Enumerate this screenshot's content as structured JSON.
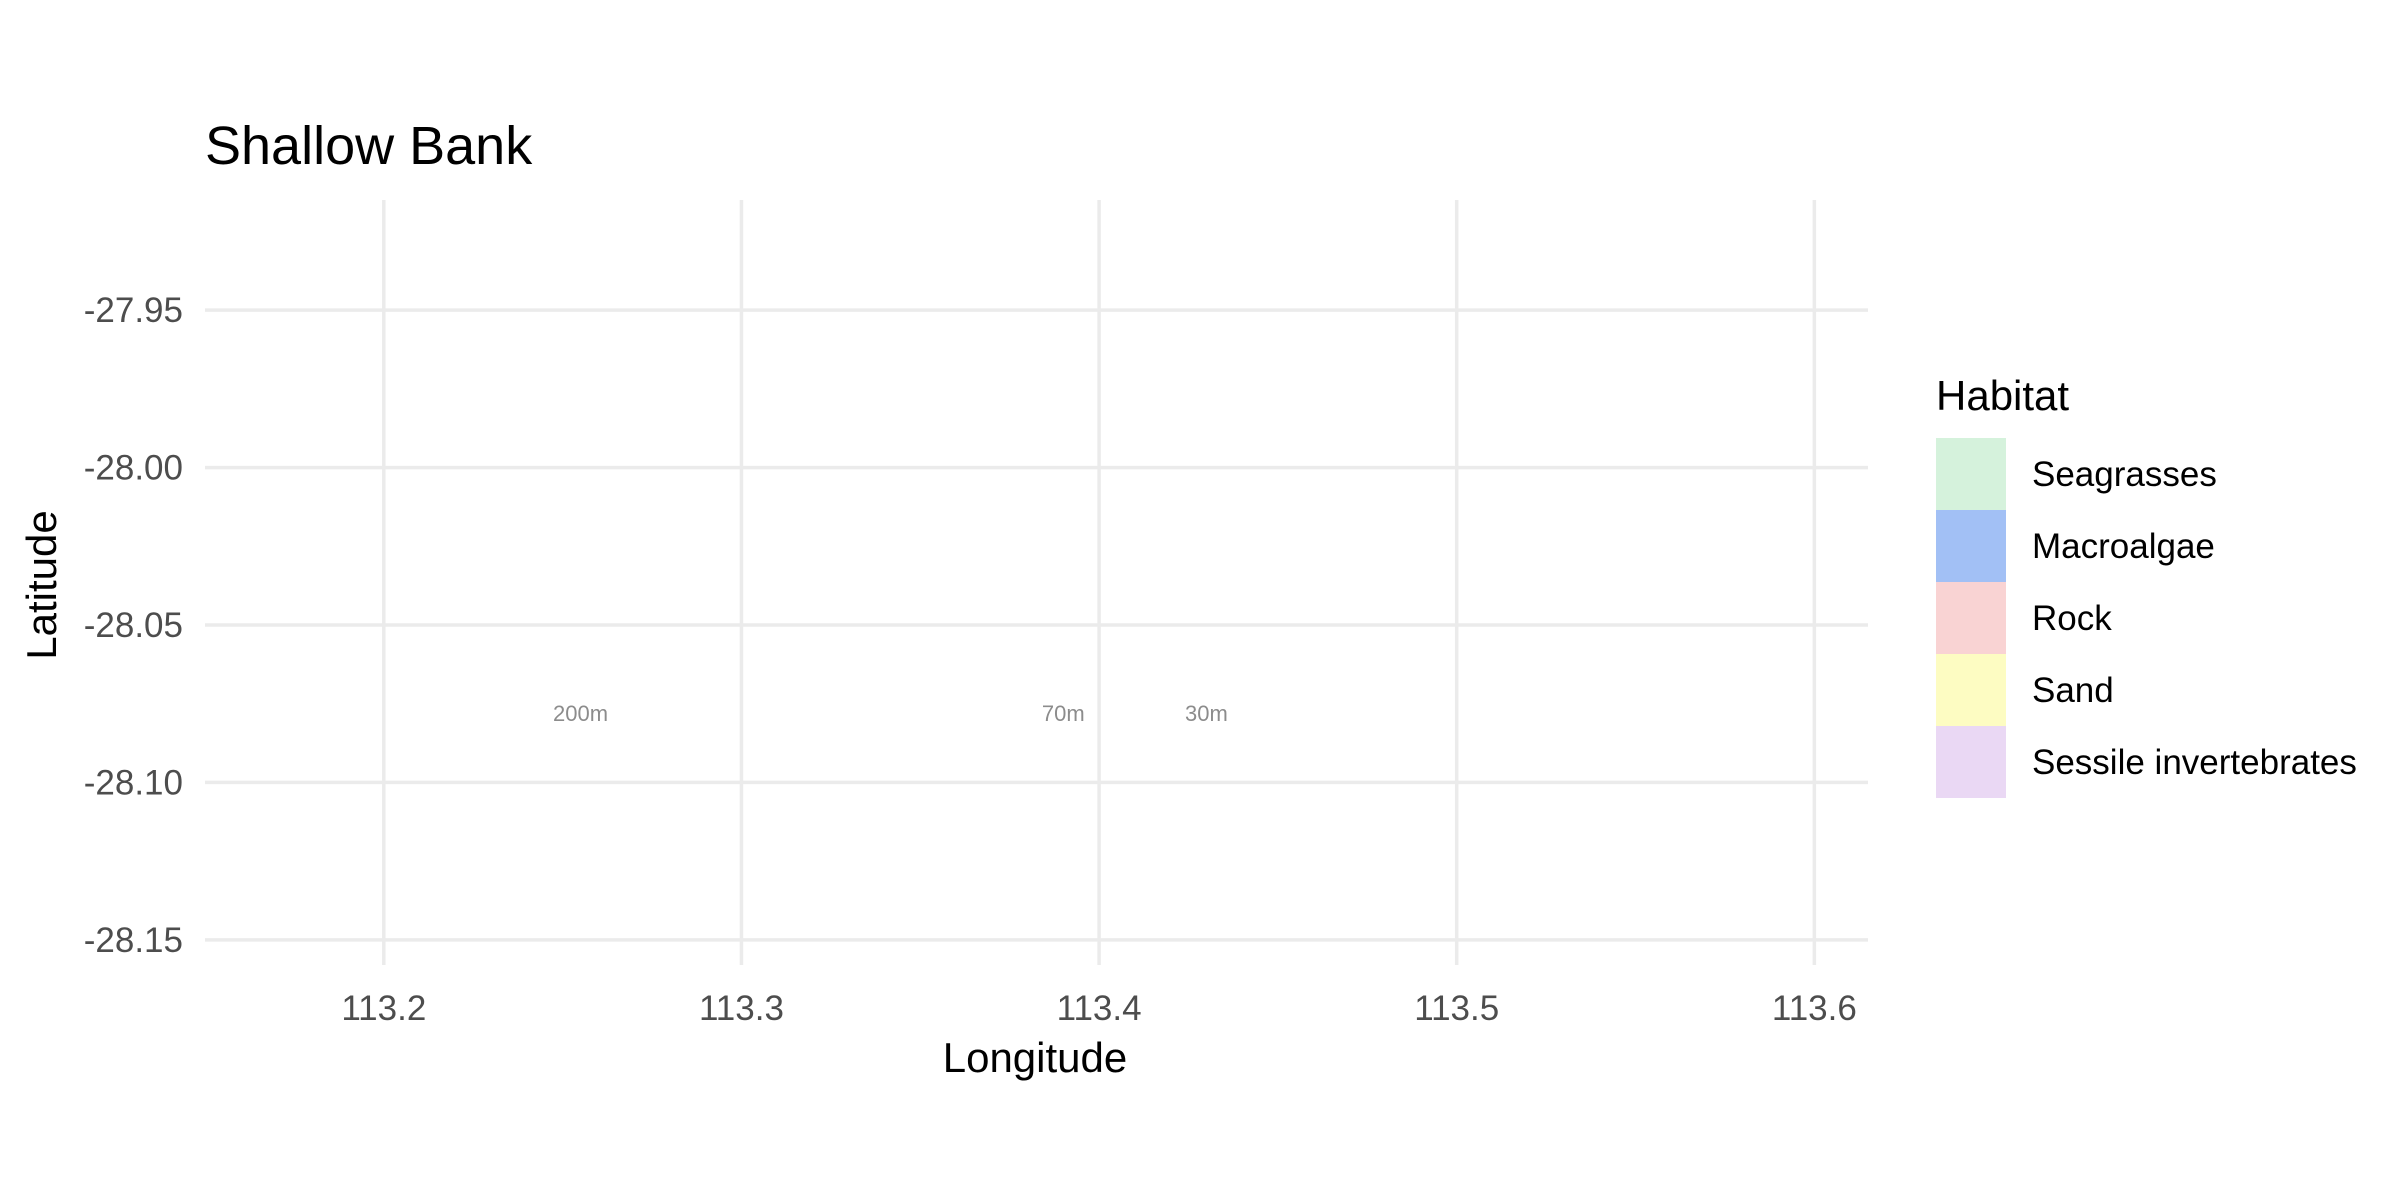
{
  "map": {
    "title": "Shallow Bank",
    "xlabel": "Longitude",
    "ylabel": "Latitude",
    "xlim": [
      113.15,
      113.615
    ],
    "ylim": [
      -28.158,
      -27.915
    ],
    "x_ticks": [
      113.2,
      113.3,
      113.4,
      113.5,
      113.6
    ],
    "x_tick_labels": [
      "113.2",
      "113.3",
      "113.4",
      "113.5",
      "113.6"
    ],
    "y_ticks": [
      -27.95,
      -28.0,
      -28.05,
      -28.1,
      -28.15
    ],
    "y_tick_labels": [
      "-27.95",
      "-28.00",
      "-28.05",
      "-28.10",
      "-28.15"
    ],
    "grid": true,
    "contour_labels": [
      {
        "text": "200m",
        "lon": 113.255,
        "lat": -28.078
      },
      {
        "text": "70m",
        "lon": 113.39,
        "lat": -28.078
      },
      {
        "text": "30m",
        "lon": 113.43,
        "lat": -28.078
      }
    ],
    "legend": {
      "title": "Habitat",
      "position": "right",
      "items": [
        {
          "label": "Seagrasses",
          "color": "#d5f2dc"
        },
        {
          "label": "Macroalgae",
          "color": "#a2c0f5"
        },
        {
          "label": "Rock",
          "color": "#f9d3d3"
        },
        {
          "label": "Sand",
          "color": "#fdfcc2"
        },
        {
          "label": "Sessile invertebrates",
          "color": "#ead8f4"
        }
      ]
    }
  }
}
